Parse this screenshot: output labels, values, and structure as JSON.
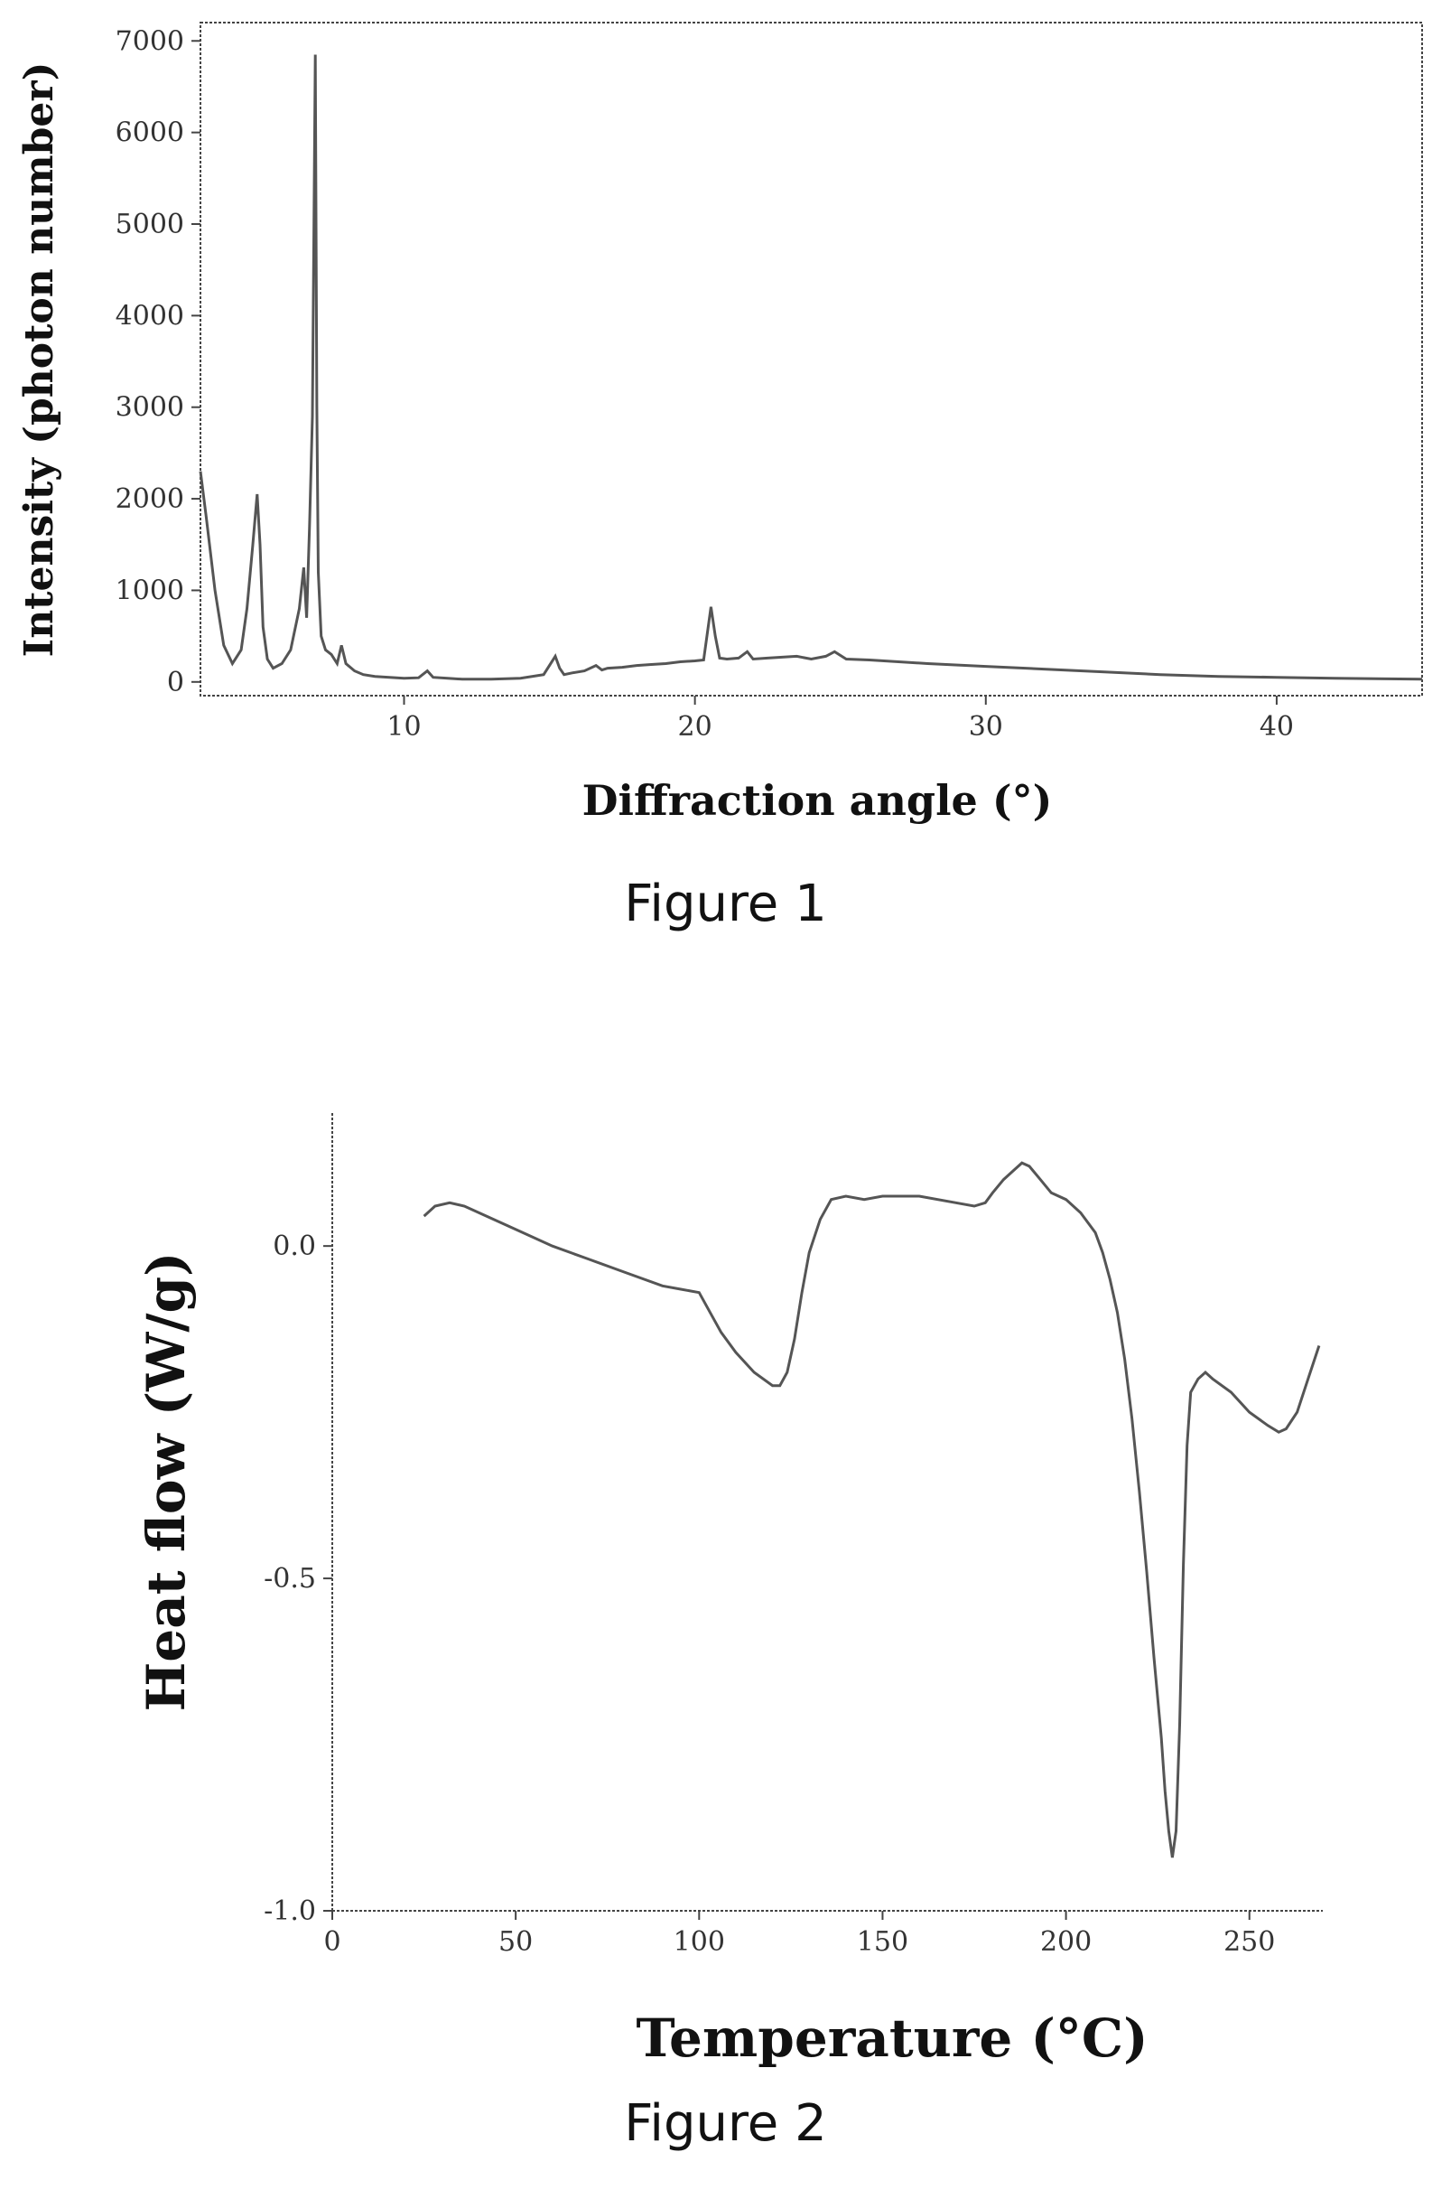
{
  "figures": [
    {
      "caption": "Figure 1",
      "chart_data": {
        "type": "line",
        "xlabel": "Diffraction angle (°)",
        "ylabel": "Intensity (photon number)",
        "xlim": [
          3,
          45
        ],
        "ylim": [
          -150,
          7200
        ],
        "x_ticks": [
          10,
          20,
          30,
          40
        ],
        "y_ticks": [
          0,
          1000,
          2000,
          3000,
          4000,
          5000,
          6000,
          7000
        ],
        "grid": false,
        "legend": "none",
        "series": [
          {
            "x": [
              3.0,
              3.2,
              3.5,
              3.8,
              4.1,
              4.4,
              4.6,
              4.8,
              4.95,
              5.05,
              5.15,
              5.3,
              5.5,
              5.8,
              6.1,
              6.4,
              6.55,
              6.65,
              6.75,
              6.85,
              6.95,
              7.0,
              7.05,
              7.15,
              7.3,
              7.5,
              7.7,
              7.85,
              8.0,
              8.3,
              8.6,
              9.0,
              9.5,
              10.0,
              10.5,
              10.8,
              11.0,
              11.5,
              12.0,
              13.0,
              14.0,
              14.8,
              15.2,
              15.35,
              15.5,
              15.8,
              16.2,
              16.6,
              16.8,
              17.0,
              17.5,
              18.0,
              18.5,
              19.0,
              19.5,
              20.0,
              20.3,
              20.55,
              20.7,
              20.85,
              21.1,
              21.5,
              21.8,
              22.0,
              22.5,
              23.0,
              23.5,
              24.0,
              24.5,
              24.8,
              25.2,
              26.0,
              27.0,
              28.0,
              30.0,
              32.0,
              34.0,
              36.0,
              38.0,
              40.0,
              42.0,
              45.0
            ],
            "y": [
              2300,
              1800,
              1000,
              400,
              200,
              350,
              800,
              1500,
              2050,
              1500,
              600,
              250,
              150,
              200,
              350,
              800,
              1250,
              700,
              1700,
              2900,
              6850,
              3000,
              1200,
              500,
              350,
              300,
              200,
              400,
              200,
              120,
              80,
              60,
              50,
              40,
              45,
              120,
              50,
              40,
              30,
              30,
              40,
              80,
              280,
              150,
              80,
              100,
              120,
              180,
              130,
              150,
              160,
              180,
              190,
              200,
              220,
              230,
              240,
              820,
              500,
              260,
              250,
              260,
              330,
              250,
              260,
              270,
              280,
              250,
              280,
              330,
              250,
              240,
              220,
              200,
              170,
              140,
              110,
              80,
              60,
              50,
              40,
              30
            ]
          }
        ]
      }
    },
    {
      "caption": "Figure 2",
      "chart_data": {
        "type": "line",
        "xlabel": "Temperature (°C)",
        "ylabel": "Heat flow (W/g)",
        "xlim": [
          0,
          270
        ],
        "ylim": [
          -1.0,
          0.2
        ],
        "x_ticks": [
          0,
          50,
          100,
          150,
          200,
          250
        ],
        "y_ticks": [
          0.0,
          -0.5,
          -1.0
        ],
        "y_tick_labels": [
          "0.0",
          "-0.5",
          "-1.0"
        ],
        "grid": false,
        "legend": "none",
        "series": [
          {
            "x": [
              25,
              28,
              32,
              36,
              40,
              50,
              60,
              70,
              80,
              90,
              95,
              100,
              103,
              106,
              110,
              115,
              120,
              122,
              124,
              126,
              128,
              130,
              133,
              136,
              140,
              145,
              150,
              160,
              170,
              175,
              178,
              180,
              183,
              186,
              188,
              190,
              193,
              196,
              200,
              204,
              208,
              210,
              212,
              214,
              216,
              218,
              220,
              222,
              224,
              226,
              227,
              228,
              229,
              230,
              231,
              232,
              233,
              234,
              236,
              238,
              240,
              245,
              250,
              255,
              258,
              260,
              263,
              266,
              269
            ],
            "y": [
              0.045,
              0.06,
              0.065,
              0.06,
              0.05,
              0.025,
              0.0,
              -0.02,
              -0.04,
              -0.06,
              -0.065,
              -0.07,
              -0.1,
              -0.13,
              -0.16,
              -0.19,
              -0.21,
              -0.21,
              -0.19,
              -0.14,
              -0.07,
              -0.01,
              0.04,
              0.07,
              0.075,
              0.07,
              0.075,
              0.075,
              0.065,
              0.06,
              0.065,
              0.08,
              0.1,
              0.115,
              0.125,
              0.12,
              0.1,
              0.08,
              0.07,
              0.05,
              0.02,
              -0.01,
              -0.05,
              -0.1,
              -0.17,
              -0.26,
              -0.37,
              -0.49,
              -0.62,
              -0.74,
              -0.82,
              -0.88,
              -0.92,
              -0.88,
              -0.72,
              -0.48,
              -0.3,
              -0.22,
              -0.2,
              -0.19,
              -0.2,
              -0.22,
              -0.25,
              -0.27,
              -0.28,
              -0.275,
              -0.25,
              -0.2,
              -0.15
            ]
          }
        ]
      }
    }
  ]
}
